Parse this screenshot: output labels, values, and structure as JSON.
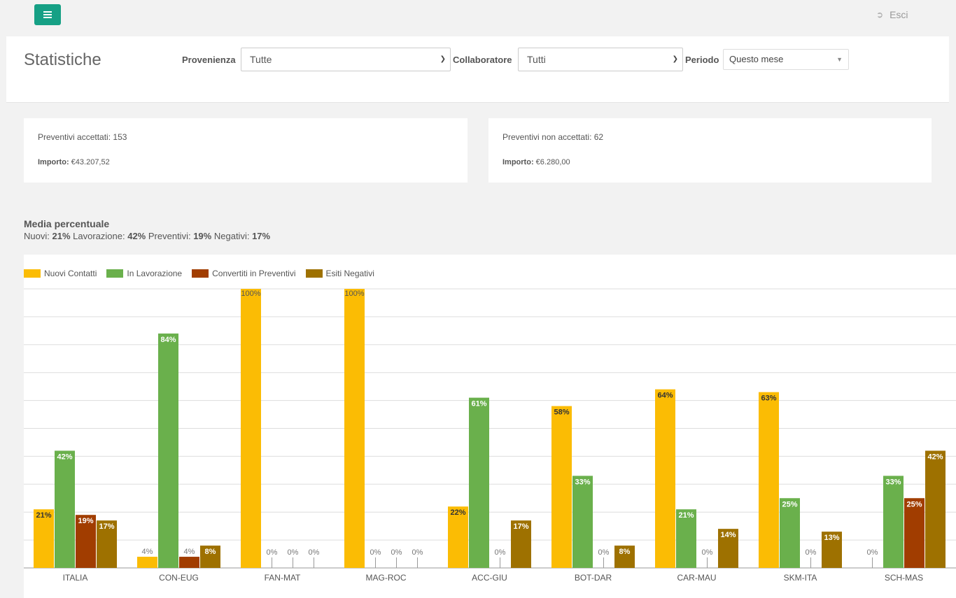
{
  "header": {
    "logout_label": "Esci"
  },
  "filters": {
    "title": "Statistiche",
    "provenienza_label": "Provenienza",
    "provenienza_value": "Tutte",
    "collaboratore_label": "Collaboratore",
    "collaboratore_value": "Tutti",
    "periodo_label": "Periodo",
    "periodo_value": "Questo mese"
  },
  "cards": {
    "accepted": {
      "label": "Preventivi accettati:",
      "count": "153",
      "amount_label": "Importo:",
      "amount": "€43.207,52"
    },
    "rejected": {
      "label": "Preventivi non accettati:",
      "count": "62",
      "amount_label": "Importo:",
      "amount": "€6.280,00"
    }
  },
  "media": {
    "title": "Media percentuale",
    "nuovi_label": "Nuovi:",
    "nuovi_value": "21%",
    "lavorazione_label": "Lavorazione:",
    "lavorazione_value": "42%",
    "preventivi_label": "Preventivi:",
    "preventivi_value": "19%",
    "negativi_label": "Negativi:",
    "negativi_value": "17%"
  },
  "colors": {
    "accent": "#16a085",
    "nuovi": "#fbbc04",
    "lavorazione": "#6ab04c",
    "convertiti": "#a13d00",
    "negativi": "#9e7100"
  },
  "chart_data": {
    "type": "bar",
    "categories": [
      "ITALIA",
      "CON-EUG",
      "FAN-MAT",
      "MAG-ROC",
      "ACC-GIU",
      "BOT-DAR",
      "CAR-MAU",
      "SKM-ITA",
      "SCH-MAS"
    ],
    "series": [
      {
        "name": "Nuovi Contatti",
        "values": [
          21,
          4,
          100,
          100,
          22,
          58,
          64,
          63,
          0
        ]
      },
      {
        "name": "In Lavorazione",
        "values": [
          42,
          84,
          0,
          0,
          61,
          33,
          21,
          25,
          33
        ]
      },
      {
        "name": "Convertiti in Preventivi",
        "values": [
          19,
          4,
          0,
          0,
          0,
          0,
          0,
          0,
          25
        ]
      },
      {
        "name": "Esiti Negativi",
        "values": [
          17,
          8,
          0,
          0,
          17,
          8,
          14,
          13,
          42
        ]
      }
    ],
    "ylim": [
      0,
      100
    ],
    "value_suffix": "%",
    "grid": true,
    "legend_position": "top-left"
  }
}
